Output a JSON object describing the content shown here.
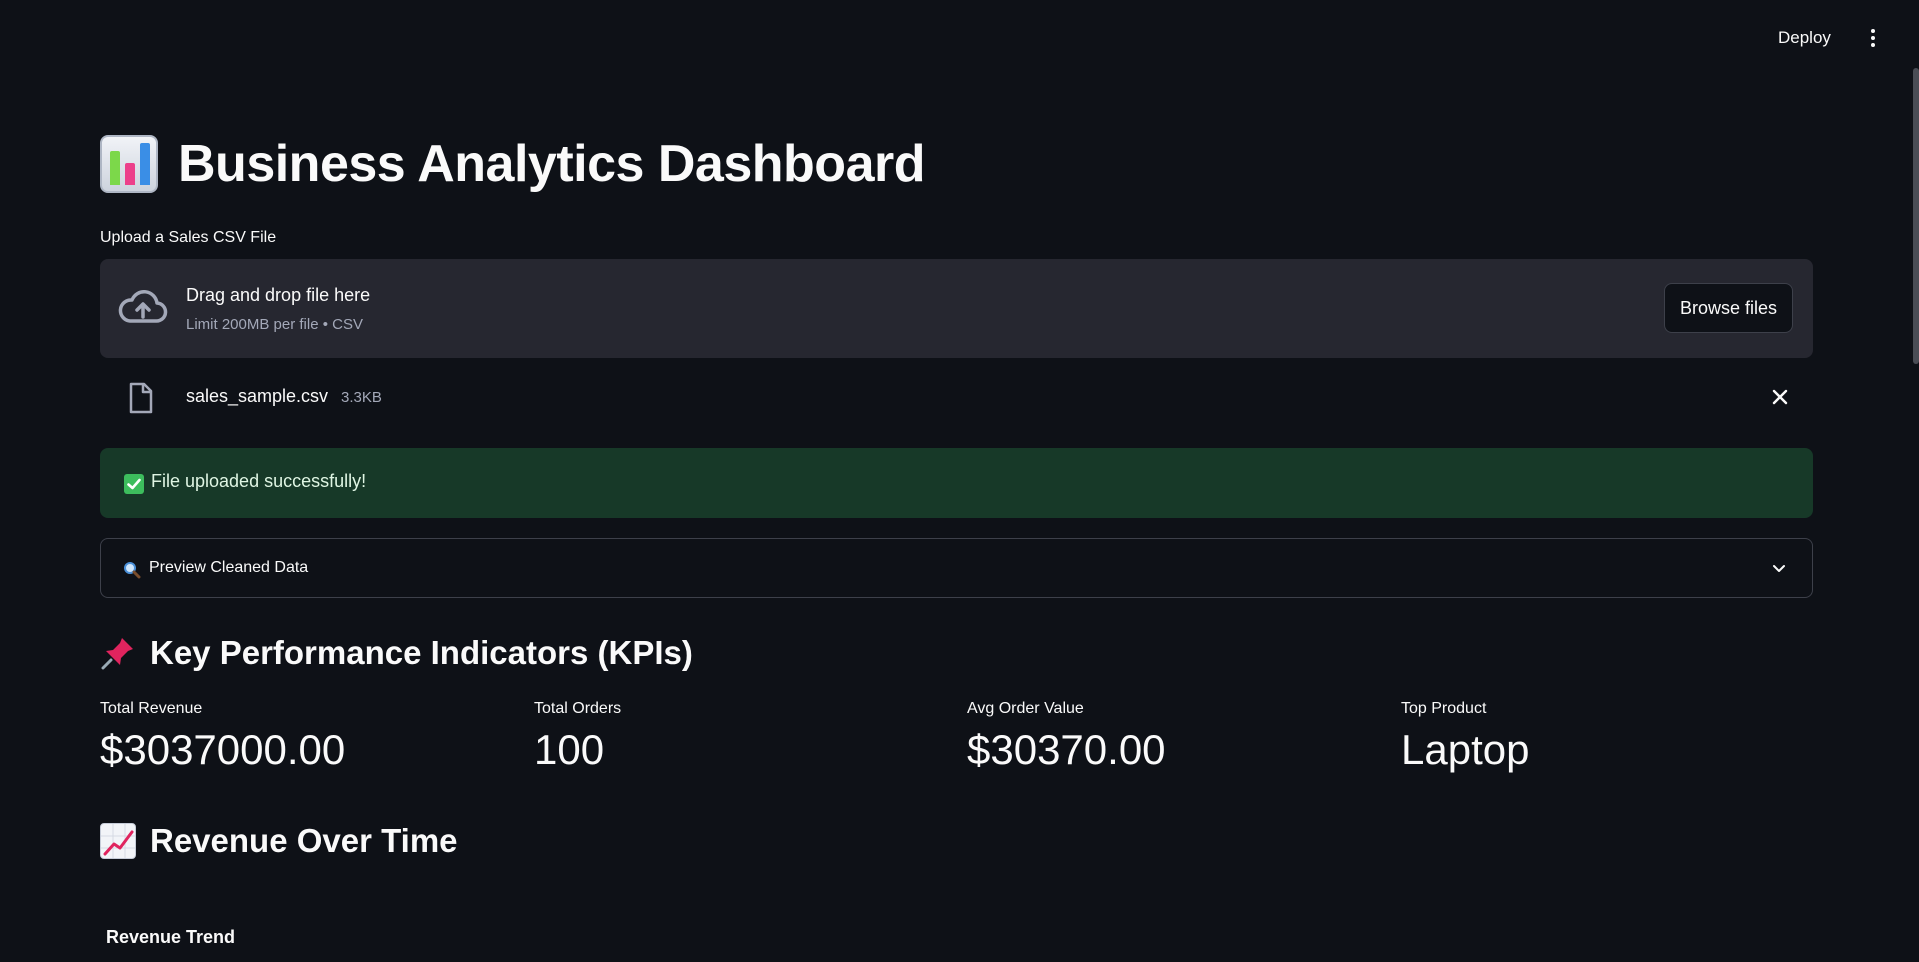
{
  "header": {
    "deploy_label": "Deploy"
  },
  "page": {
    "title": "Business Analytics Dashboard",
    "title_icon": "bar-chart-emoji-icon"
  },
  "uploader": {
    "label": "Upload a Sales CSV File",
    "drop_title": "Drag and drop file here",
    "drop_hint": "Limit 200MB per file • CSV",
    "browse_label": "Browse files"
  },
  "uploaded_file": {
    "name": "sales_sample.csv",
    "size": "3.3KB"
  },
  "alert": {
    "text": "File uploaded successfully!",
    "color": "#173928"
  },
  "expander": {
    "label": "Preview Cleaned Data"
  },
  "kpi_section": {
    "title": "Key Performance Indicators (KPIs)",
    "icon": "pushpin-icon",
    "metrics": [
      {
        "label": "Total Revenue",
        "value": "$3037000.00"
      },
      {
        "label": "Total Orders",
        "value": "100"
      },
      {
        "label": "Avg Order Value",
        "value": "$30370.00"
      },
      {
        "label": "Top Product",
        "value": "Laptop"
      }
    ]
  },
  "revenue_section": {
    "title": "Revenue Over Time",
    "icon": "chart-increasing-icon",
    "chart_title": "Revenue Trend"
  },
  "colors": {
    "background": "#0e1117",
    "surface": "#262730",
    "text": "#fafafa",
    "muted": "#a3a8b8",
    "success_bg": "#173928"
  }
}
